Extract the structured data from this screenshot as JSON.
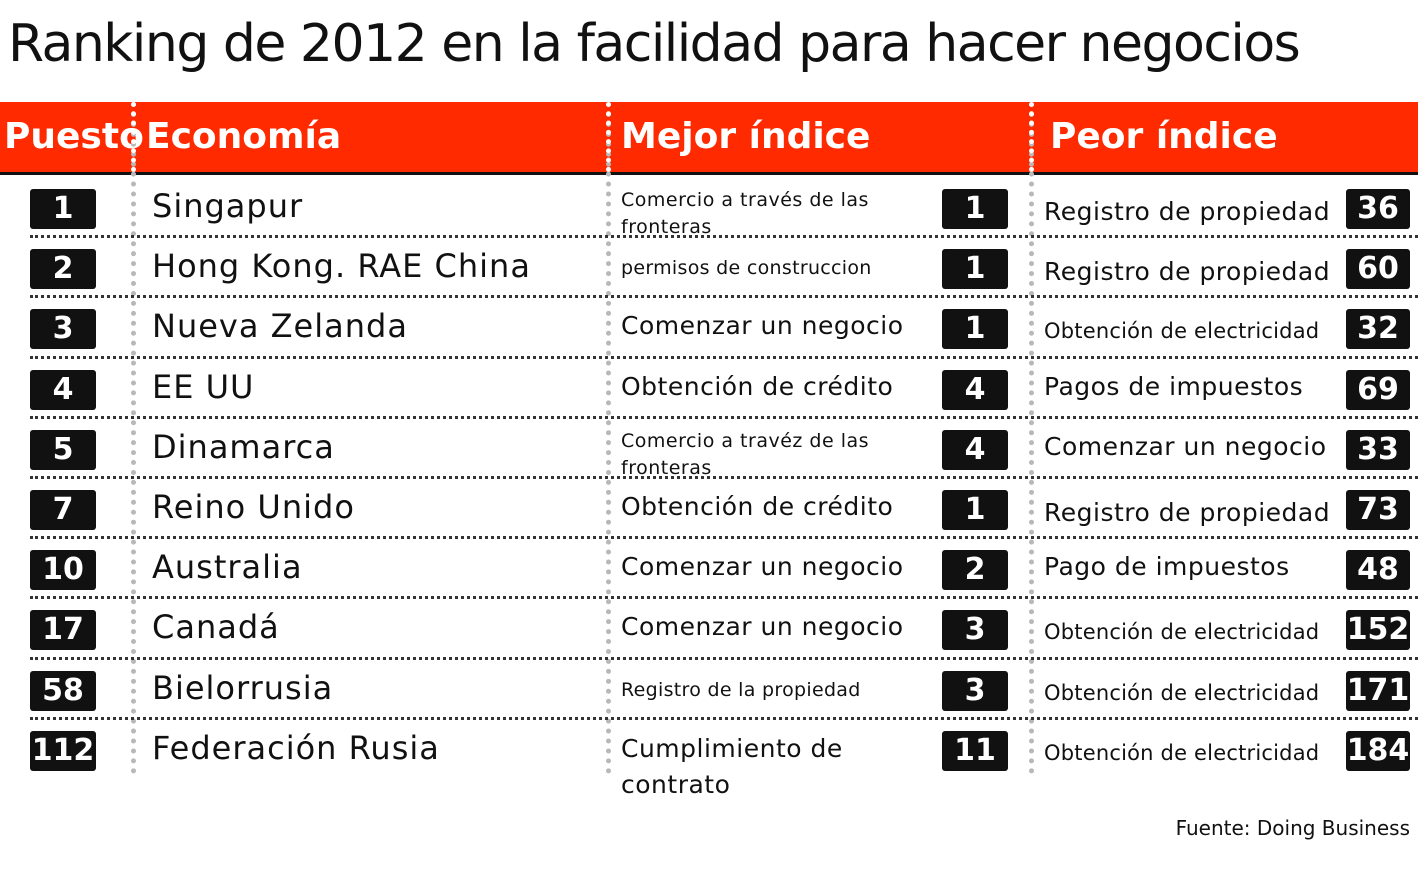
{
  "title": "Ranking de 2012 en la facilidad para hacer negocios",
  "headers": {
    "rank": "Puesto",
    "economy": "Economía",
    "best": "Mejor índice",
    "worst": "Peor índice"
  },
  "rows": [
    {
      "rank": "1",
      "economy": "Singapur",
      "best_label": "Comercio a través de las fronteras",
      "best_value": "1",
      "worst_label": "Registro de propiedad",
      "worst_value": "36"
    },
    {
      "rank": "2",
      "economy": "Hong Kong. RAE China",
      "best_label": "permisos de construccion",
      "best_value": "1",
      "worst_label": "Registro de propiedad",
      "worst_value": "60"
    },
    {
      "rank": "3",
      "economy": "Nueva Zelanda",
      "best_label": "Comenzar un negocio",
      "best_value": "1",
      "worst_label": "Obtención de electricidad",
      "worst_value": "32"
    },
    {
      "rank": "4",
      "economy": "EE UU",
      "best_label": "Obtención de crédito",
      "best_value": "4",
      "worst_label": "Pagos de impuestos",
      "worst_value": "69"
    },
    {
      "rank": "5",
      "economy": "Dinamarca",
      "best_label": "Comercio a travéz de las fronteras",
      "best_value": "4",
      "worst_label": "Comenzar un negocio",
      "worst_value": "33"
    },
    {
      "rank": "7",
      "economy": "Reino Unido",
      "best_label": "Obtención de crédito",
      "best_value": "1",
      "worst_label": "Registro de propiedad",
      "worst_value": "73"
    },
    {
      "rank": "10",
      "economy": "Australia",
      "best_label": "Comenzar un negocio",
      "best_value": "2",
      "worst_label": "Pago de impuestos",
      "worst_value": "48"
    },
    {
      "rank": "17",
      "economy": "Canadá",
      "best_label": "Comenzar un negocio",
      "best_value": "3",
      "worst_label": "Obtención de electricidad",
      "worst_value": "152"
    },
    {
      "rank": "58",
      "economy": "Bielorrusia",
      "best_label": "Registro de la propiedad",
      "best_value": "3",
      "worst_label": "Obtención de electricidad",
      "worst_value": "171"
    },
    {
      "rank": "112",
      "economy": "Federación Rusia",
      "best_label": "Cumplimiento de contrato",
      "best_value": "11",
      "worst_label": "Obtención de electricidad",
      "worst_value": "184"
    }
  ],
  "source": "Fuente: Doing Business",
  "colors": {
    "header_bg": "#ff2a00",
    "badge_bg": "#111111",
    "header_text": "#ffffff"
  }
}
